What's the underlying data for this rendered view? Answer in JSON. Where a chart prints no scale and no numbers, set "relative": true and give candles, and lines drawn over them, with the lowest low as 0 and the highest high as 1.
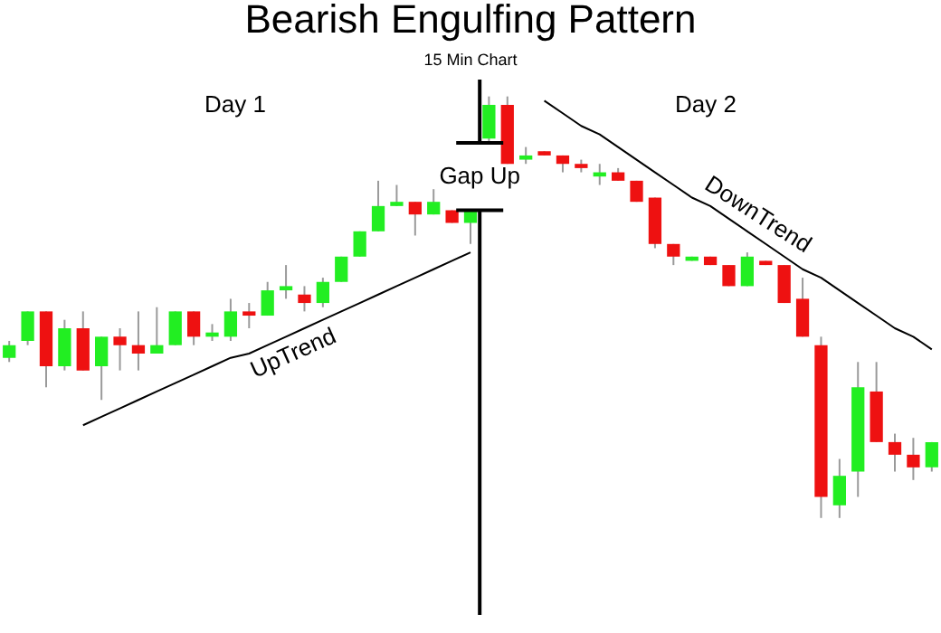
{
  "chart_data": {
    "type": "candlestick",
    "title": "Bearish Engulfing Pattern",
    "subtitle": "15 Min Chart",
    "relative": true,
    "tick_labels": false,
    "categories": [
      null,
      null,
      null,
      null,
      null,
      null,
      null,
      null,
      null,
      null,
      null,
      null,
      null,
      null,
      null,
      null,
      null,
      null,
      null,
      null,
      null,
      null,
      null,
      null,
      null,
      null,
      null,
      null,
      null,
      null,
      null,
      null,
      null,
      null,
      null,
      null,
      null,
      null,
      null,
      null,
      null,
      null,
      null,
      null,
      null,
      null,
      null,
      null,
      null,
      null,
      null
    ],
    "ohlc": [
      [
        0.38,
        0.42,
        0.37,
        0.41
      ],
      [
        0.42,
        0.49,
        0.41,
        0.49
      ],
      [
        0.49,
        0.49,
        0.31,
        0.36
      ],
      [
        0.36,
        0.47,
        0.35,
        0.45
      ],
      [
        0.45,
        0.49,
        0.35,
        0.35
      ],
      [
        0.36,
        0.43,
        0.28,
        0.43
      ],
      [
        0.43,
        0.45,
        0.35,
        0.41
      ],
      [
        0.41,
        0.49,
        0.35,
        0.39
      ],
      [
        0.39,
        0.5,
        0.39,
        0.41
      ],
      [
        0.41,
        0.49,
        0.41,
        0.49
      ],
      [
        0.49,
        0.49,
        0.41,
        0.43
      ],
      [
        0.43,
        0.46,
        0.42,
        0.44
      ],
      [
        0.43,
        0.52,
        0.42,
        0.49
      ],
      [
        0.49,
        0.51,
        0.45,
        0.48
      ],
      [
        0.48,
        0.56,
        0.48,
        0.54
      ],
      [
        0.54,
        0.6,
        0.52,
        0.55
      ],
      [
        0.53,
        0.55,
        0.49,
        0.51
      ],
      [
        0.51,
        0.57,
        0.5,
        0.56
      ],
      [
        0.56,
        0.62,
        0.56,
        0.62
      ],
      [
        0.62,
        0.68,
        0.62,
        0.68
      ],
      [
        0.68,
        0.8,
        0.68,
        0.74
      ],
      [
        0.74,
        0.79,
        0.74,
        0.75
      ],
      [
        0.75,
        0.75,
        0.67,
        0.72
      ],
      [
        0.72,
        0.78,
        0.72,
        0.75
      ],
      [
        0.73,
        0.73,
        0.7,
        0.7
      ],
      [
        0.7,
        0.73,
        0.65,
        0.73
      ],
      [
        0.9,
        1.0,
        0.89,
        0.98
      ],
      [
        0.98,
        1.0,
        0.84,
        0.84
      ],
      [
        0.85,
        0.88,
        0.84,
        0.86
      ],
      [
        0.87,
        0.87,
        0.86,
        0.86
      ],
      [
        0.86,
        0.86,
        0.82,
        0.84
      ],
      [
        0.84,
        0.85,
        0.82,
        0.83
      ],
      [
        0.81,
        0.84,
        0.79,
        0.82
      ],
      [
        0.82,
        0.83,
        0.8,
        0.8
      ],
      [
        0.8,
        0.8,
        0.75,
        0.75
      ],
      [
        0.76,
        0.76,
        0.64,
        0.65
      ],
      [
        0.65,
        0.65,
        0.6,
        0.62
      ],
      [
        0.61,
        0.62,
        0.61,
        0.62
      ],
      [
        0.62,
        0.62,
        0.6,
        0.6
      ],
      [
        0.6,
        0.6,
        0.55,
        0.55
      ],
      [
        0.55,
        0.63,
        0.55,
        0.62
      ],
      [
        0.61,
        0.61,
        0.6,
        0.6
      ],
      [
        0.6,
        0.6,
        0.51,
        0.51
      ],
      [
        0.52,
        0.57,
        0.43,
        0.43
      ],
      [
        0.41,
        0.43,
        0.0,
        0.05
      ],
      [
        0.03,
        0.14,
        0.0,
        0.1
      ],
      [
        0.11,
        0.37,
        0.05,
        0.31
      ],
      [
        0.3,
        0.37,
        0.18,
        0.18
      ],
      [
        0.18,
        0.2,
        0.11,
        0.15
      ],
      [
        0.15,
        0.19,
        0.09,
        0.12
      ],
      [
        0.12,
        0.18,
        0.11,
        0.18
      ]
    ],
    "colors": [
      "#22ee22",
      "#22ee22",
      "#ee1111",
      "#22ee22",
      "#ee1111",
      "#22ee22",
      "#ee1111",
      "#ee1111",
      "#22ee22",
      "#22ee22",
      "#ee1111",
      "#22ee22",
      "#22ee22",
      "#ee1111",
      "#22ee22",
      "#22ee22",
      "#ee1111",
      "#22ee22",
      "#22ee22",
      "#22ee22",
      "#22ee22",
      "#22ee22",
      "#ee1111",
      "#22ee22",
      "#ee1111",
      "#22ee22",
      "#22ee22",
      "#ee1111",
      "#22ee22",
      "#ee1111",
      "#ee1111",
      "#ee1111",
      "#22ee22",
      "#ee1111",
      "#ee1111",
      "#ee1111",
      "#ee1111",
      "#22ee22",
      "#ee1111",
      "#ee1111",
      "#22ee22",
      "#ee1111",
      "#ee1111",
      "#ee1111",
      "#ee1111",
      "#22ee22",
      "#22ee22",
      "#ee1111",
      "#ee1111",
      "#ee1111",
      "#22ee22"
    ],
    "series": [
      {
        "type": "line",
        "name": "UpTrend",
        "color": "#000000",
        "values": [
          null,
          null,
          null,
          null,
          0.22,
          0.24,
          0.26,
          0.28,
          0.3,
          0.32,
          0.34,
          0.36,
          0.38,
          0.39,
          0.41,
          0.43,
          0.45,
          0.47,
          0.49,
          0.51,
          0.53,
          0.55,
          0.57,
          0.59,
          0.61,
          0.63,
          null,
          null,
          null,
          null,
          null,
          null,
          null,
          null,
          null,
          null,
          null,
          null,
          null,
          null,
          null,
          null,
          null,
          null,
          null,
          null,
          null,
          null,
          null,
          null,
          null
        ]
      },
      {
        "type": "line",
        "name": "DownTrend",
        "color": "#000000",
        "values": [
          null,
          null,
          null,
          null,
          null,
          null,
          null,
          null,
          null,
          null,
          null,
          null,
          null,
          null,
          null,
          null,
          null,
          null,
          null,
          null,
          null,
          null,
          null,
          null,
          null,
          null,
          null,
          null,
          null,
          0.99,
          0.96,
          0.93,
          0.91,
          0.88,
          0.85,
          0.82,
          0.79,
          0.76,
          0.74,
          0.71,
          0.68,
          0.65,
          0.62,
          0.59,
          0.57,
          0.54,
          0.51,
          0.48,
          0.45,
          0.43,
          0.4
        ]
      }
    ],
    "annotations": [
      "Day 1",
      "Day 2",
      "Gap Up"
    ]
  }
}
